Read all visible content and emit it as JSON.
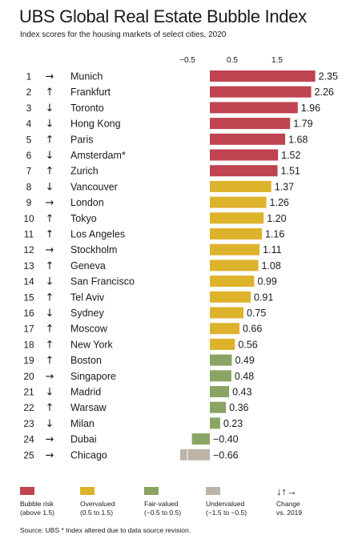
{
  "title": "UBS Global Real Estate Bubble Index",
  "subtitle": "Index scores for the housing markets of select cities, 2020",
  "source": "Source: UBS  * Index altered due to data source revision.",
  "colors": {
    "bubble": "#bf4350",
    "overvalued": "#ddb32c",
    "fair": "#8aa563",
    "undervalued": "#bdb3a7",
    "text": "#1a1a1a"
  },
  "legend": [
    {
      "key": "bubble",
      "label": "Bubble risk",
      "range": "(above 1.5)"
    },
    {
      "key": "overvalued",
      "label": "Overvalued",
      "range": "(0.5 to 1.5)"
    },
    {
      "key": "fair",
      "label": "Fair-valued",
      "range": "(−0.5 to 0.5)"
    },
    {
      "key": "undervalued",
      "label": "Undervalued",
      "range": "(−1.5 to −0.5)"
    }
  ],
  "change_legend": {
    "icons": "↓↑→",
    "label": "Change",
    "sub": "vs. 2019"
  },
  "chart_data": {
    "type": "bar",
    "orientation": "horizontal",
    "title": "UBS Global Real Estate Bubble Index",
    "subtitle": "Index scores for the housing markets of select cities, 2020",
    "x_ticks": [
      "−0.5",
      "0.5",
      "1.5"
    ],
    "x_tick_values": [
      -0.5,
      0.5,
      1.5
    ],
    "xlim": [
      -1.0,
      2.35
    ],
    "grid": false,
    "rows": [
      {
        "rank": "1",
        "change": "→",
        "city": "Munich",
        "value": 2.35,
        "label": "2.35",
        "category": "bubble"
      },
      {
        "rank": "2",
        "change": "↑",
        "city": "Frankfurt",
        "value": 2.26,
        "label": "2.26",
        "category": "bubble"
      },
      {
        "rank": "3",
        "change": "↓",
        "city": "Toronto",
        "value": 1.96,
        "label": "1.96",
        "category": "bubble"
      },
      {
        "rank": "4",
        "change": "↓",
        "city": "Hong Kong",
        "value": 1.79,
        "label": "1.79",
        "category": "bubble"
      },
      {
        "rank": "5",
        "change": "↑",
        "city": "Paris",
        "value": 1.68,
        "label": "1.68",
        "category": "bubble"
      },
      {
        "rank": "6",
        "change": "↓",
        "city": "Amsterdam*",
        "value": 1.52,
        "label": "1.52",
        "category": "bubble"
      },
      {
        "rank": "7",
        "change": "↑",
        "city": "Zurich",
        "value": 1.51,
        "label": "1.51",
        "category": "bubble"
      },
      {
        "rank": "8",
        "change": "↓",
        "city": "Vancouver",
        "value": 1.37,
        "label": "1.37",
        "category": "overvalued"
      },
      {
        "rank": "9",
        "change": "→",
        "city": "London",
        "value": 1.26,
        "label": "1.26",
        "category": "overvalued"
      },
      {
        "rank": "10",
        "change": "↑",
        "city": "Tokyo",
        "value": 1.2,
        "label": "1.20",
        "category": "overvalued"
      },
      {
        "rank": "11",
        "change": "↑",
        "city": "Los Angeles",
        "value": 1.16,
        "label": "1.16",
        "category": "overvalued"
      },
      {
        "rank": "12",
        "change": "→",
        "city": "Stockholm",
        "value": 1.11,
        "label": "1.11",
        "category": "overvalued"
      },
      {
        "rank": "13",
        "change": "↑",
        "city": "Geneva",
        "value": 1.08,
        "label": "1.08",
        "category": "overvalued"
      },
      {
        "rank": "14",
        "change": "↓",
        "city": "San Francisco",
        "value": 0.99,
        "label": "0.99",
        "category": "overvalued"
      },
      {
        "rank": "15",
        "change": "↑",
        "city": "Tel Aviv",
        "value": 0.91,
        "label": "0.91",
        "category": "overvalued"
      },
      {
        "rank": "16",
        "change": "↓",
        "city": "Sydney",
        "value": 0.75,
        "label": "0.75",
        "category": "overvalued"
      },
      {
        "rank": "17",
        "change": "↑",
        "city": "Moscow",
        "value": 0.66,
        "label": "0.66",
        "category": "overvalued"
      },
      {
        "rank": "18",
        "change": "↑",
        "city": "New York",
        "value": 0.56,
        "label": "0.56",
        "category": "overvalued"
      },
      {
        "rank": "19",
        "change": "↑",
        "city": "Boston",
        "value": 0.49,
        "label": "0.49",
        "category": "fair"
      },
      {
        "rank": "20",
        "change": "→",
        "city": "Singapore",
        "value": 0.48,
        "label": "0.48",
        "category": "fair"
      },
      {
        "rank": "21",
        "change": "↓",
        "city": "Madrid",
        "value": 0.43,
        "label": "0.43",
        "category": "fair"
      },
      {
        "rank": "22",
        "change": "↑",
        "city": "Warsaw",
        "value": 0.36,
        "label": "0.36",
        "category": "fair"
      },
      {
        "rank": "23",
        "change": "↓",
        "city": "Milan",
        "value": 0.23,
        "label": "0.23",
        "category": "fair"
      },
      {
        "rank": "24",
        "change": "→",
        "city": "Dubai",
        "value": -0.4,
        "label": "−0.40",
        "category": "fair"
      },
      {
        "rank": "25",
        "change": "→",
        "city": "Chicago",
        "value": -0.66,
        "label": "−0.66",
        "category": "undervalued"
      }
    ]
  }
}
